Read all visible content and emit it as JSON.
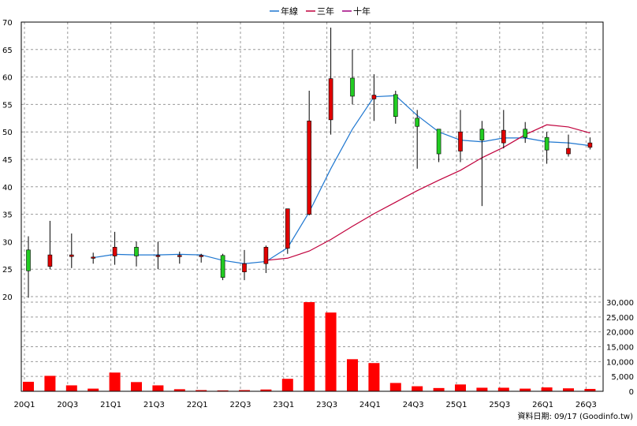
{
  "chart_data": {
    "type": "candlestick",
    "legend": [
      {
        "name": "年線",
        "color": "#1f77d0"
      },
      {
        "name": "三年",
        "color": "#c0003c"
      },
      {
        "name": "十年",
        "color": "#a0007f"
      }
    ],
    "colors": {
      "up": "#e00000",
      "down": "#22cc22",
      "volume": "#ff0000",
      "grid": "#9a9a9a"
    },
    "price_axis": {
      "min": 20,
      "max": 70,
      "step": 5
    },
    "volume_axis": {
      "min": 0,
      "max": 30000,
      "ticks": [
        "30,000",
        "25,000",
        "20,000",
        "15,000",
        "10,000",
        "5,000",
        "0"
      ]
    },
    "x_tick_labels": [
      "20Q1",
      "20Q3",
      "21Q1",
      "21Q3",
      "22Q1",
      "22Q3",
      "23Q1",
      "23Q3",
      "24Q1",
      "24Q3",
      "25Q1",
      "25Q3",
      "26Q1",
      "26Q3"
    ],
    "quarters": [
      "20Q1",
      "20Q2",
      "20Q3",
      "20Q4",
      "21Q1",
      "21Q2",
      "21Q3",
      "21Q4",
      "22Q1",
      "22Q2",
      "22Q3",
      "22Q4",
      "23Q1",
      "23Q2",
      "23Q3",
      "23Q4",
      "24Q1",
      "24Q2",
      "24Q3",
      "24Q4",
      "25Q1",
      "25Q2",
      "25Q3",
      "25Q4",
      "26Q1",
      "26Q2",
      "26Q3"
    ],
    "candles": [
      {
        "o": 28.5,
        "h": 31.0,
        "l": 19.8,
        "c": 24.7
      },
      {
        "o": 25.5,
        "h": 33.8,
        "l": 25.0,
        "c": 27.6
      },
      {
        "o": 27.3,
        "h": 31.5,
        "l": 25.2,
        "c": 27.6
      },
      {
        "o": 27.0,
        "h": 28.0,
        "l": 26.0,
        "c": 27.2
      },
      {
        "o": 27.4,
        "h": 31.8,
        "l": 25.8,
        "c": 29.0
      },
      {
        "o": 29.0,
        "h": 30.0,
        "l": 25.5,
        "c": 27.4
      },
      {
        "o": 27.4,
        "h": 30.0,
        "l": 25.0,
        "c": 27.5
      },
      {
        "o": 27.4,
        "h": 28.2,
        "l": 26.0,
        "c": 27.5
      },
      {
        "o": 27.3,
        "h": 27.8,
        "l": 26.2,
        "c": 27.5
      },
      {
        "o": 27.5,
        "h": 27.8,
        "l": 23.0,
        "c": 23.5
      },
      {
        "o": 24.5,
        "h": 28.5,
        "l": 23.0,
        "c": 26.0
      },
      {
        "o": 26.0,
        "h": 29.3,
        "l": 24.3,
        "c": 29.0
      },
      {
        "o": 28.8,
        "h": 36.0,
        "l": 27.8,
        "c": 36.0
      },
      {
        "o": 35.0,
        "h": 57.5,
        "l": 34.8,
        "c": 52.0
      },
      {
        "o": 52.2,
        "h": 69.0,
        "l": 49.5,
        "c": 59.7
      },
      {
        "o": 59.8,
        "h": 65.0,
        "l": 55.0,
        "c": 56.5
      },
      {
        "o": 56.0,
        "h": 60.5,
        "l": 52.0,
        "c": 56.7
      },
      {
        "o": 56.8,
        "h": 57.5,
        "l": 51.5,
        "c": 52.8
      },
      {
        "o": 52.5,
        "h": 54.0,
        "l": 43.3,
        "c": 51.0
      },
      {
        "o": 50.5,
        "h": 50.5,
        "l": 44.5,
        "c": 46.0
      },
      {
        "o": 46.5,
        "h": 54.0,
        "l": 44.5,
        "c": 50.0
      },
      {
        "o": 50.5,
        "h": 52.0,
        "l": 36.5,
        "c": 48.5
      },
      {
        "o": 48.0,
        "h": 54.0,
        "l": 47.0,
        "c": 50.3
      },
      {
        "o": 50.5,
        "h": 51.8,
        "l": 48.0,
        "c": 49.0
      },
      {
        "o": 49.0,
        "h": 50.0,
        "l": 44.2,
        "c": 46.7
      },
      {
        "o": 46.0,
        "h": 49.5,
        "l": 45.5,
        "c": 47.0
      },
      {
        "o": 47.2,
        "h": 49.0,
        "l": 46.8,
        "c": 48.0
      }
    ],
    "series": [
      {
        "name": "年線",
        "values": [
          null,
          null,
          null,
          27.1,
          27.7,
          27.6,
          27.6,
          27.7,
          27.6,
          26.6,
          26.0,
          26.4,
          28.9,
          35.4,
          43.3,
          50.5,
          56.4,
          56.6,
          53.0,
          50.0,
          48.5,
          48.2,
          48.9,
          48.9,
          48.2,
          48.0,
          47.5
        ]
      },
      {
        "name": "三年",
        "values": [
          null,
          null,
          null,
          null,
          null,
          null,
          null,
          null,
          null,
          null,
          null,
          26.6,
          27.0,
          28.3,
          30.4,
          32.8,
          35.1,
          37.2,
          39.3,
          41.2,
          43.0,
          45.3,
          47.2,
          49.5,
          51.3,
          50.9,
          49.8
        ]
      }
    ],
    "volume": [
      3200,
      5200,
      2000,
      900,
      6300,
      3100,
      2000,
      700,
      400,
      300,
      400,
      600,
      4200,
      30000,
      26500,
      10800,
      9500,
      2800,
      1700,
      1100,
      2300,
      1200,
      1200,
      900,
      1300,
      1000,
      800
    ],
    "footer": "資料日期: 09/17 (Goodinfo.tw)"
  }
}
